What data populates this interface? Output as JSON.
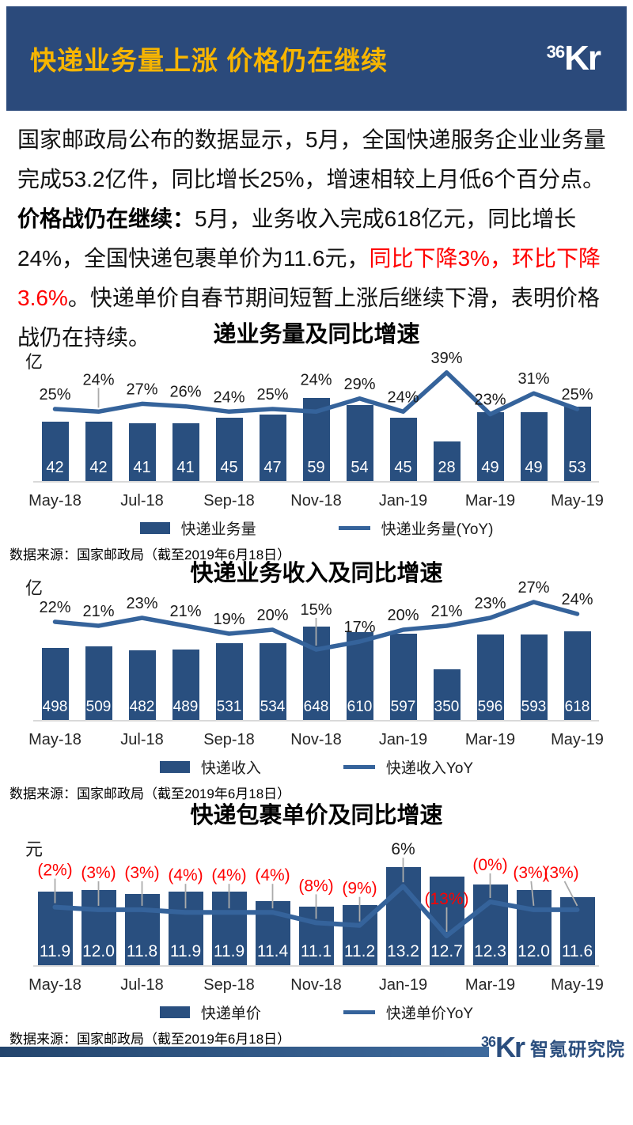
{
  "header": {
    "title": "快递业务量上涨 价格仍在继续",
    "logo_small": "36",
    "logo_big": "Kr"
  },
  "intro": {
    "part1": "国家邮政局公布的数据显示，5月，全国快递服务企业业务量完成53.2亿件，同比增长25%，增速相较上月低6个百分点。",
    "bold": "价格战仍在继续：",
    "part2": "5月，业务收入完成618亿元，同比增长24%，全国快递包裹单价为11.6元，",
    "red": "同比下降3%，环比下降3.6%",
    "part3": "。快递单价自春节期间短暂上涨后继续下滑，表明价格战仍在持续。"
  },
  "colors": {
    "bar": "#294F7F",
    "line": "#35639B",
    "header_bg": "#2B4A7B",
    "title_yellow": "#F7B500",
    "negative_red": "#FF0000",
    "axis_gray": "#D9D9D9",
    "leader_gray": "#ABABAB"
  },
  "chart_data": [
    {
      "type": "bar",
      "title": "递业务量及同比增速",
      "unit": "亿",
      "x_tick_labels": [
        "May-18",
        "Jul-18",
        "Sep-18",
        "Nov-18",
        "Jan-19",
        "Mar-19",
        "May-19"
      ],
      "bar_series": {
        "name": "快递业务量",
        "values": [
          42,
          42,
          41,
          41,
          45,
          47,
          59,
          54,
          45,
          28,
          49,
          49,
          53
        ],
        "labels": [
          "42",
          "42",
          "41",
          "41",
          "45",
          "47",
          "59",
          "54",
          "45",
          "28",
          "49",
          "49",
          "53"
        ]
      },
      "line_series": {
        "name": "快递业务量(YoY)",
        "unit": "percent",
        "values": [
          25,
          24,
          27,
          26,
          24,
          25,
          24,
          29,
          24,
          39,
          23,
          31,
          25
        ],
        "labels": [
          "25%",
          "24%",
          "27%",
          "26%",
          "24%",
          "25%",
          "24%",
          "29%",
          "24%",
          "39%",
          "23%",
          "31%",
          "25%"
        ]
      },
      "label_leader_indices": [
        1
      ],
      "source": "数据来源：国家邮政局（截至2019年6月18日）"
    },
    {
      "type": "bar",
      "title": "快递业务收入及同比增速",
      "unit": "亿",
      "x_tick_labels": [
        "May-18",
        "Jul-18",
        "Sep-18",
        "Nov-18",
        "Jan-19",
        "Mar-19",
        "May-19"
      ],
      "bar_series": {
        "name": "快递收入",
        "values": [
          498,
          509,
          482,
          489,
          531,
          534,
          648,
          610,
          597,
          350,
          596,
          593,
          618
        ],
        "labels": [
          "498",
          "509",
          "482",
          "489",
          "531",
          "534",
          "648",
          "610",
          "597",
          "350",
          "596",
          "593",
          "618"
        ]
      },
      "line_series": {
        "name": "快递收入YoY",
        "unit": "percent",
        "values": [
          22,
          21,
          23,
          21,
          19,
          20,
          15,
          17,
          20,
          21,
          23,
          27,
          24
        ],
        "labels": [
          "22%",
          "21%",
          "23%",
          "21%",
          "19%",
          "20%",
          "15%",
          "17%",
          "20%",
          "21%",
          "23%",
          "27%",
          "24%"
        ]
      },
      "label_leader_indices": [
        6
      ],
      "source": "数据来源：国家邮政局（截至2019年6月18日）"
    },
    {
      "type": "bar",
      "title": "快递包裹单价及同比增速",
      "unit": "元",
      "x_tick_labels": [
        "May-18",
        "Jul-18",
        "Sep-18",
        "Nov-18",
        "Jan-19",
        "Mar-19",
        "May-19"
      ],
      "bar_series": {
        "name": "快递单价",
        "values": [
          11.9,
          12.0,
          11.8,
          11.9,
          11.9,
          11.4,
          11.1,
          11.2,
          13.2,
          12.7,
          12.3,
          12.0,
          11.6
        ],
        "labels": [
          "11.9",
          "12.0",
          "11.8",
          "11.9",
          "11.9",
          "11.4",
          "11.1",
          "11.2",
          "13.2",
          "12.7",
          "12.3",
          "12.0",
          "11.6"
        ]
      },
      "line_series": {
        "name": "快递单价YoY",
        "unit": "percent",
        "values": [
          -2,
          -3,
          -3,
          -4,
          -4,
          -4,
          -8,
          -9,
          6,
          -13,
          0,
          -3,
          -3
        ],
        "labels": [
          "(2%)",
          "(3%)",
          "(3%)",
          "(4%)",
          "(4%)",
          "(4%)",
          "(8%)",
          "(9%)",
          "6%",
          "(13%)",
          "(0%)",
          "(3%)",
          "(3%)"
        ]
      },
      "label_leader_indices": "all",
      "source": "数据来源：国家邮政局（截至2019年6月18日）"
    }
  ],
  "footer": {
    "logo_small": "36",
    "logo_big": "Kr",
    "brand": "智氪研究院"
  }
}
